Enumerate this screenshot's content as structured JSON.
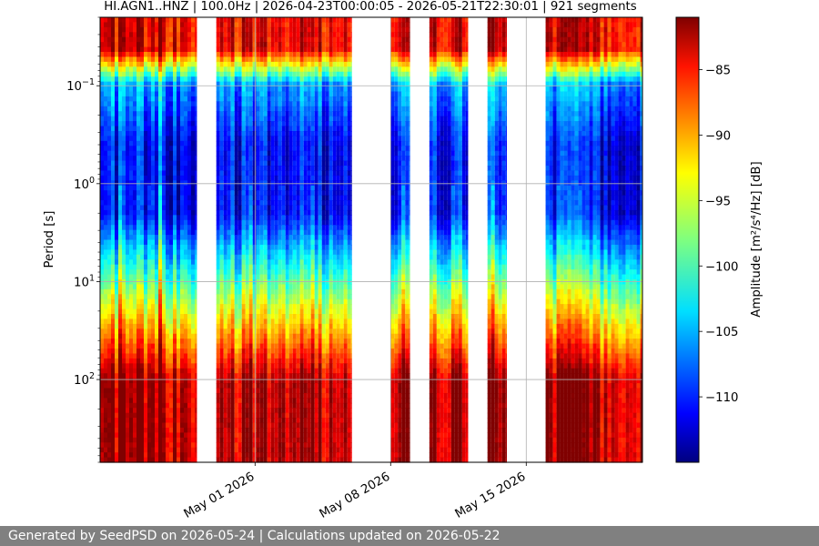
{
  "chart_data": {
    "type": "heatmap",
    "title": "HI.AGN1..HNZ | 100.0Hz | 2026-04-23T00:00:05 - 2026-05-21T22:30:01 | 921 segments",
    "xlabel": "",
    "ylabel": "Period [s]",
    "x_range": [
      "2026-04-23",
      "2026-05-21"
    ],
    "x_ticks": [
      "May 01 2026",
      "May 08 2026",
      "May 15 2026"
    ],
    "x_tick_dates": [
      "2026-05-01",
      "2026-05-08",
      "2026-05-15"
    ],
    "y_scale": "log",
    "y_inverted": true,
    "ylim": [
      0.02,
      700
    ],
    "y_ticks": [
      0.1,
      1,
      10,
      100
    ],
    "y_tick_labels": [
      {
        "base": "10",
        "exp": "−1"
      },
      {
        "base": "10",
        "exp": "0"
      },
      {
        "base": "10",
        "exp": "1"
      },
      {
        "base": "10",
        "exp": "2"
      }
    ],
    "grid": true,
    "colormap": "jet",
    "colorbar": {
      "label": "Amplitude",
      "unit_label": "[m²/s⁴/Hz] [dB]",
      "range": [
        -115,
        -81
      ],
      "ticks": [
        -85,
        -90,
        -95,
        -100,
        -105,
        -110
      ],
      "tick_labels": [
        "−85",
        "−90",
        "−95",
        "−100",
        "−105",
        "−110"
      ]
    },
    "data_segments": [
      {
        "start": "2026-04-23",
        "end": "2026-04-28"
      },
      {
        "start": "2026-04-29",
        "end": "2026-05-06"
      },
      {
        "start": "2026-05-08",
        "end": "2026-05-09"
      },
      {
        "start": "2026-05-10",
        "end": "2026-05-12"
      },
      {
        "start": "2026-05-13",
        "end": "2026-05-14"
      },
      {
        "start": "2026-05-16",
        "end": "2026-05-21"
      }
    ]
  },
  "footer": {
    "text": "Generated by SeedPSD on 2026-05-24 | Calculations updated on 2026-05-22"
  }
}
